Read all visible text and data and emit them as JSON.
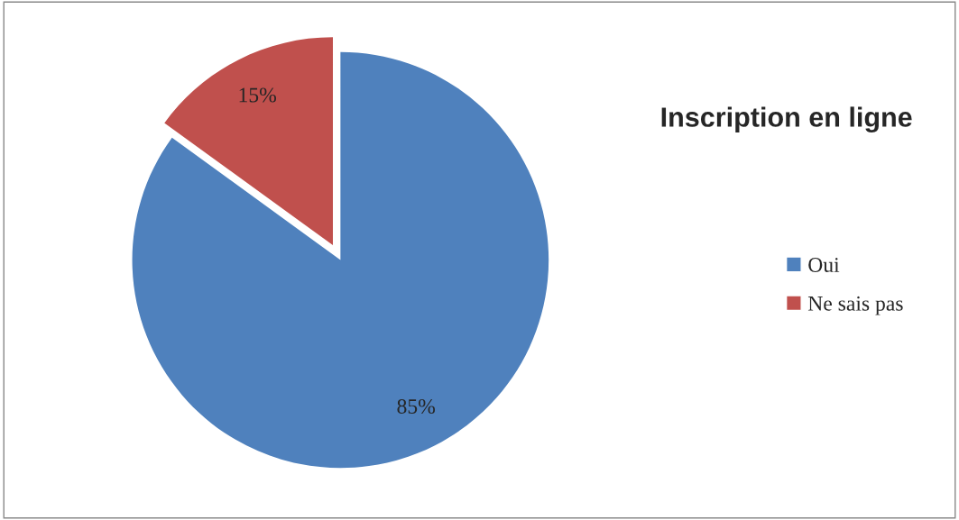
{
  "chart_data": {
    "type": "pie",
    "title": "Inscription en ligne",
    "categories": [
      "Oui",
      "Ne sais pas"
    ],
    "values": [
      85,
      15
    ],
    "colors": [
      "#4f81bd",
      "#c0504d"
    ],
    "value_labels": [
      "85%",
      "15%"
    ],
    "legend": "right"
  }
}
